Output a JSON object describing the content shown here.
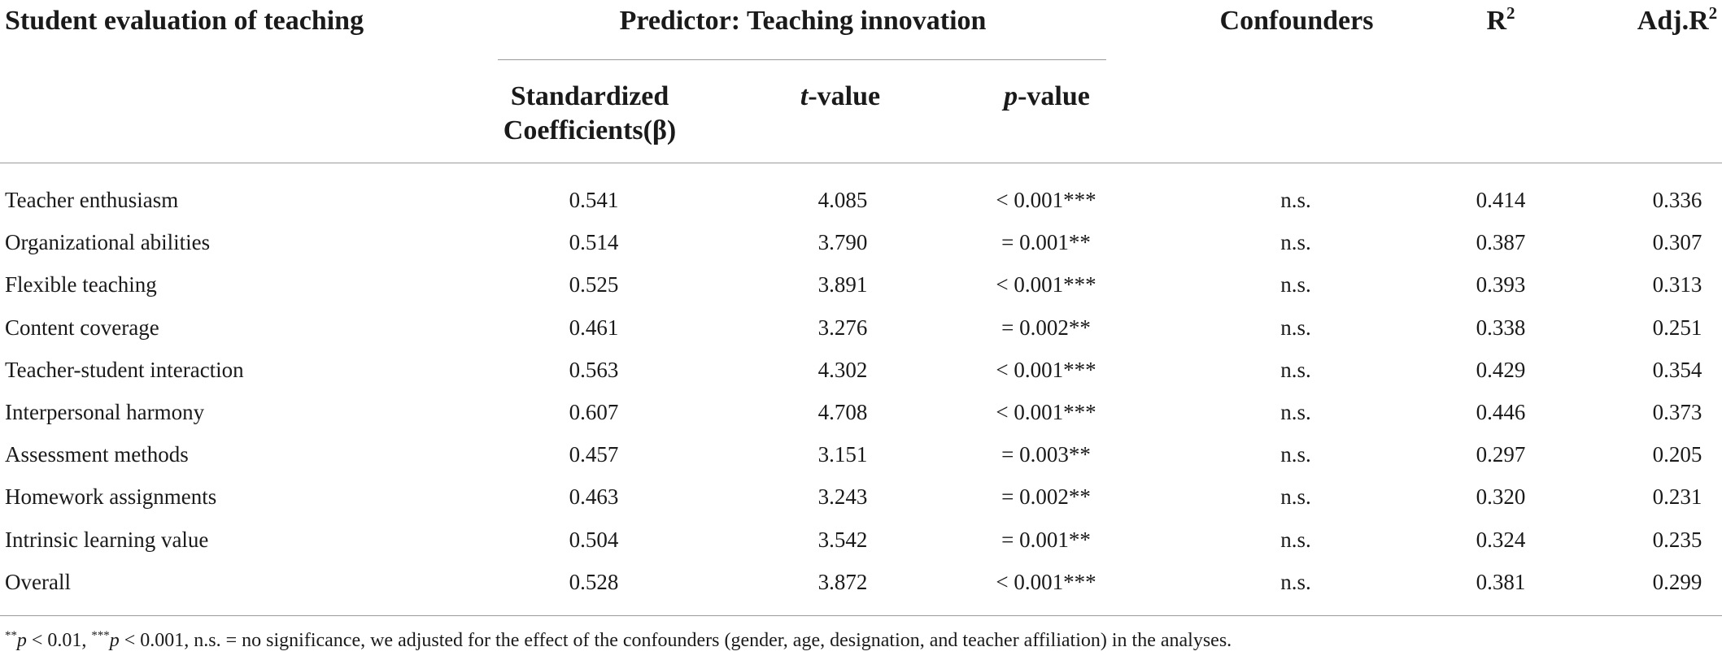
{
  "header": {
    "col_name": "Student evaluation of teaching",
    "predictor_group": "Predictor: Teaching innovation",
    "confounders": "Confounders",
    "r2_base": "R",
    "r2_sup": "2",
    "adjr2_base": "Adj.R",
    "adjr2_sup": "2",
    "beta_line1": "Standardized",
    "beta_line2": "Coefficients(β)",
    "t_italic": "t",
    "t_rest": "-value",
    "p_italic": "p",
    "p_rest": "-value"
  },
  "rows": [
    {
      "name": "Teacher enthusiasm",
      "beta": "0.541",
      "t": "4.085",
      "p": "< 0.001***",
      "conf": "n.s.",
      "r2": "0.414",
      "adj": "0.336"
    },
    {
      "name": "Organizational abilities",
      "beta": "0.514",
      "t": "3.790",
      "p": "= 0.001**",
      "conf": "n.s.",
      "r2": "0.387",
      "adj": "0.307"
    },
    {
      "name": "Flexible teaching",
      "beta": "0.525",
      "t": "3.891",
      "p": "< 0.001***",
      "conf": "n.s.",
      "r2": "0.393",
      "adj": "0.313"
    },
    {
      "name": "Content coverage",
      "beta": "0.461",
      "t": "3.276",
      "p": "= 0.002**",
      "conf": "n.s.",
      "r2": "0.338",
      "adj": "0.251"
    },
    {
      "name": "Teacher-student interaction",
      "beta": "0.563",
      "t": "4.302",
      "p": "< 0.001***",
      "conf": "n.s.",
      "r2": "0.429",
      "adj": "0.354"
    },
    {
      "name": "Interpersonal harmony",
      "beta": "0.607",
      "t": "4.708",
      "p": "< 0.001***",
      "conf": "n.s.",
      "r2": "0.446",
      "adj": "0.373"
    },
    {
      "name": "Assessment methods",
      "beta": "0.457",
      "t": "3.151",
      "p": "= 0.003**",
      "conf": "n.s.",
      "r2": "0.297",
      "adj": "0.205"
    },
    {
      "name": "Homework assignments",
      "beta": "0.463",
      "t": "3.243",
      "p": "= 0.002**",
      "conf": "n.s.",
      "r2": "0.320",
      "adj": "0.231"
    },
    {
      "name": "Intrinsic learning value",
      "beta": "0.504",
      "t": "3.542",
      "p": "= 0.001**",
      "conf": "n.s.",
      "r2": "0.324",
      "adj": "0.235"
    },
    {
      "name": "Overall",
      "beta": "0.528",
      "t": "3.872",
      "p": "< 0.001***",
      "conf": "n.s.",
      "r2": "0.381",
      "adj": "0.299"
    }
  ],
  "footnote": {
    "stars2": "**",
    "p1": "p",
    "lt1": " < 0.01, ",
    "stars3": "***",
    "p2": "p",
    "lt2": " < 0.001, n.s. = no significance, we adjusted for the effect of the confounders (gender, age, designation, and teacher affiliation) in the analyses."
  }
}
